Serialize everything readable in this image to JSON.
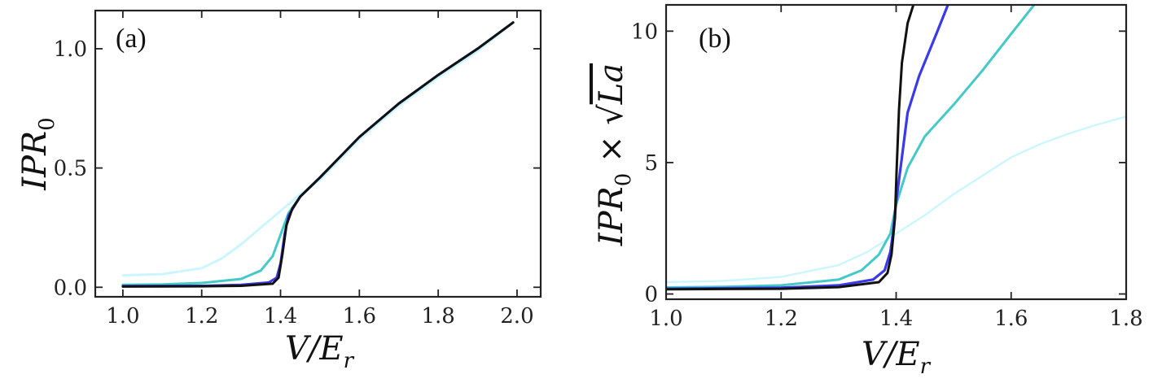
{
  "chart_data": [
    {
      "type": "line",
      "panel_label": "(a)",
      "xlabel": "V/E_r",
      "ylabel": "IPR_0",
      "xlim": [
        0.93,
        2.06
      ],
      "ylim": [
        -0.04,
        1.16
      ],
      "xticks": [
        1.0,
        1.2,
        1.4,
        1.6,
        1.8,
        2.0
      ],
      "xtick_labels": [
        "1.0",
        "1.2",
        "1.4",
        "1.6",
        "1.8",
        "2.0"
      ],
      "yticks": [
        0.0,
        0.5,
        1.0
      ],
      "ytick_labels": [
        "0.0",
        "0.5",
        "1.0"
      ],
      "grid": false,
      "series": [
        {
          "color": "#ccf6ff",
          "x": [
            1.0,
            1.1,
            1.2,
            1.25,
            1.3,
            1.35,
            1.4,
            1.45,
            1.5,
            1.6,
            1.7,
            1.8,
            1.9,
            1.99
          ],
          "y": [
            0.05,
            0.055,
            0.08,
            0.12,
            0.18,
            0.25,
            0.32,
            0.39,
            0.45,
            0.62,
            0.76,
            0.88,
            0.99,
            1.11
          ]
        },
        {
          "color": "#45c8c8",
          "x": [
            1.0,
            1.1,
            1.2,
            1.3,
            1.35,
            1.38,
            1.4,
            1.42,
            1.45,
            1.5,
            1.6,
            1.7,
            1.8,
            1.9,
            1.99
          ],
          "y": [
            0.01,
            0.012,
            0.018,
            0.035,
            0.07,
            0.13,
            0.22,
            0.31,
            0.38,
            0.46,
            0.63,
            0.77,
            0.89,
            1.0,
            1.11
          ]
        },
        {
          "color": "#3a3ae8",
          "x": [
            1.0,
            1.2,
            1.3,
            1.37,
            1.39,
            1.4,
            1.41,
            1.42,
            1.45,
            1.5,
            1.6,
            1.7,
            1.8,
            1.9,
            1.99
          ],
          "y": [
            0.005,
            0.006,
            0.01,
            0.02,
            0.04,
            0.1,
            0.22,
            0.3,
            0.38,
            0.46,
            0.63,
            0.77,
            0.89,
            1.0,
            1.11
          ]
        },
        {
          "color": "#111111",
          "x": [
            1.0,
            1.2,
            1.3,
            1.38,
            1.395,
            1.405,
            1.415,
            1.43,
            1.45,
            1.5,
            1.6,
            1.7,
            1.8,
            1.9,
            1.99
          ],
          "y": [
            0.003,
            0.004,
            0.006,
            0.015,
            0.04,
            0.14,
            0.26,
            0.33,
            0.38,
            0.46,
            0.63,
            0.77,
            0.89,
            1.0,
            1.11
          ]
        }
      ]
    },
    {
      "type": "line",
      "panel_label": "(b)",
      "xlabel": "V/E_r",
      "ylabel": "IPR_0 × √La",
      "xlim": [
        1.0,
        1.8
      ],
      "ylim": [
        -0.2,
        11.0
      ],
      "xticks": [
        1.0,
        1.2,
        1.4,
        1.6,
        1.8
      ],
      "xtick_labels": [
        "1.0",
        "1.2",
        "1.4",
        "1.6",
        "1.8"
      ],
      "yticks": [
        0,
        5,
        10
      ],
      "ytick_labels": [
        "0",
        "5",
        "10"
      ],
      "grid": false,
      "series": [
        {
          "color": "#ccf6ff",
          "x": [
            1.0,
            1.1,
            1.2,
            1.3,
            1.35,
            1.4,
            1.45,
            1.5,
            1.55,
            1.6,
            1.65,
            1.7,
            1.75,
            1.8
          ],
          "y": [
            0.45,
            0.5,
            0.65,
            1.1,
            1.6,
            2.3,
            3.0,
            3.8,
            4.5,
            5.2,
            5.7,
            6.1,
            6.45,
            6.75
          ]
        },
        {
          "color": "#45c8c8",
          "x": [
            1.0,
            1.1,
            1.2,
            1.3,
            1.34,
            1.37,
            1.39,
            1.4,
            1.42,
            1.45,
            1.5,
            1.55,
            1.6,
            1.64
          ],
          "y": [
            0.25,
            0.27,
            0.33,
            0.55,
            0.9,
            1.5,
            2.3,
            3.4,
            4.8,
            6.0,
            7.2,
            8.5,
            9.9,
            11.0
          ]
        },
        {
          "color": "#3a3ae8",
          "x": [
            1.0,
            1.2,
            1.3,
            1.36,
            1.38,
            1.39,
            1.395,
            1.4,
            1.41,
            1.42,
            1.44,
            1.47,
            1.49
          ],
          "y": [
            0.2,
            0.24,
            0.33,
            0.55,
            0.9,
            1.6,
            2.4,
            3.5,
            5.2,
            6.9,
            8.3,
            9.9,
            11.0
          ]
        },
        {
          "color": "#111111",
          "x": [
            1.0,
            1.2,
            1.3,
            1.37,
            1.385,
            1.392,
            1.398,
            1.401,
            1.405,
            1.41,
            1.42,
            1.43
          ],
          "y": [
            0.18,
            0.2,
            0.26,
            0.45,
            0.8,
            1.5,
            2.9,
            4.8,
            7.0,
            8.8,
            10.3,
            11.0
          ]
        }
      ]
    }
  ]
}
